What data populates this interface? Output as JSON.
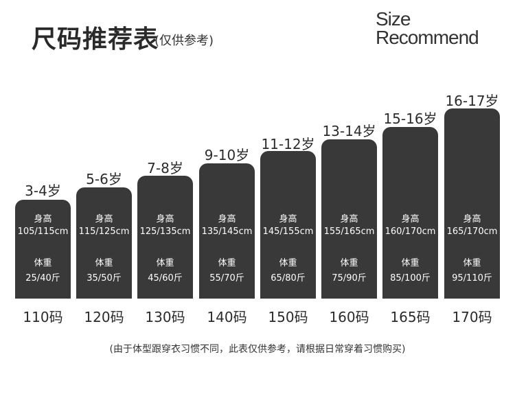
{
  "header": {
    "title": "尺码推荐表",
    "subtitle": "(仅供参考)",
    "brand_line1": "Size",
    "brand_line2": "Recommend"
  },
  "labels": {
    "height": "身高",
    "weight": "体重"
  },
  "columns": [
    {
      "age": "3-4岁",
      "height": "105/115cm",
      "weight": "25/40斤",
      "size": "110码"
    },
    {
      "age": "5-6岁",
      "height": "115/125cm",
      "weight": "35/50斤",
      "size": "120码"
    },
    {
      "age": "7-8岁",
      "height": "125/135cm",
      "weight": "45/60斤",
      "size": "130码"
    },
    {
      "age": "9-10岁",
      "height": "135/145cm",
      "weight": "55/70斤",
      "size": "140码"
    },
    {
      "age": "11-12岁",
      "height": "145/155cm",
      "weight": "65/80斤",
      "size": "150码"
    },
    {
      "age": "13-14岁",
      "height": "155/165cm",
      "weight": "75/90斤",
      "size": "160码"
    },
    {
      "age": "15-16岁",
      "height": "160/170cm",
      "weight": "85/100斤",
      "size": "165码"
    },
    {
      "age": "16-17岁",
      "height": "165/170cm",
      "weight": "95/110斤",
      "size": "170码"
    }
  ],
  "footer": {
    "note": "(由于体型跟穿衣习惯不同，此表仅供参考，请根据日常穿着习惯购买)"
  },
  "colors": {
    "bar": "#393939",
    "text": "#2b2b2b",
    "background": "#ffffff"
  }
}
